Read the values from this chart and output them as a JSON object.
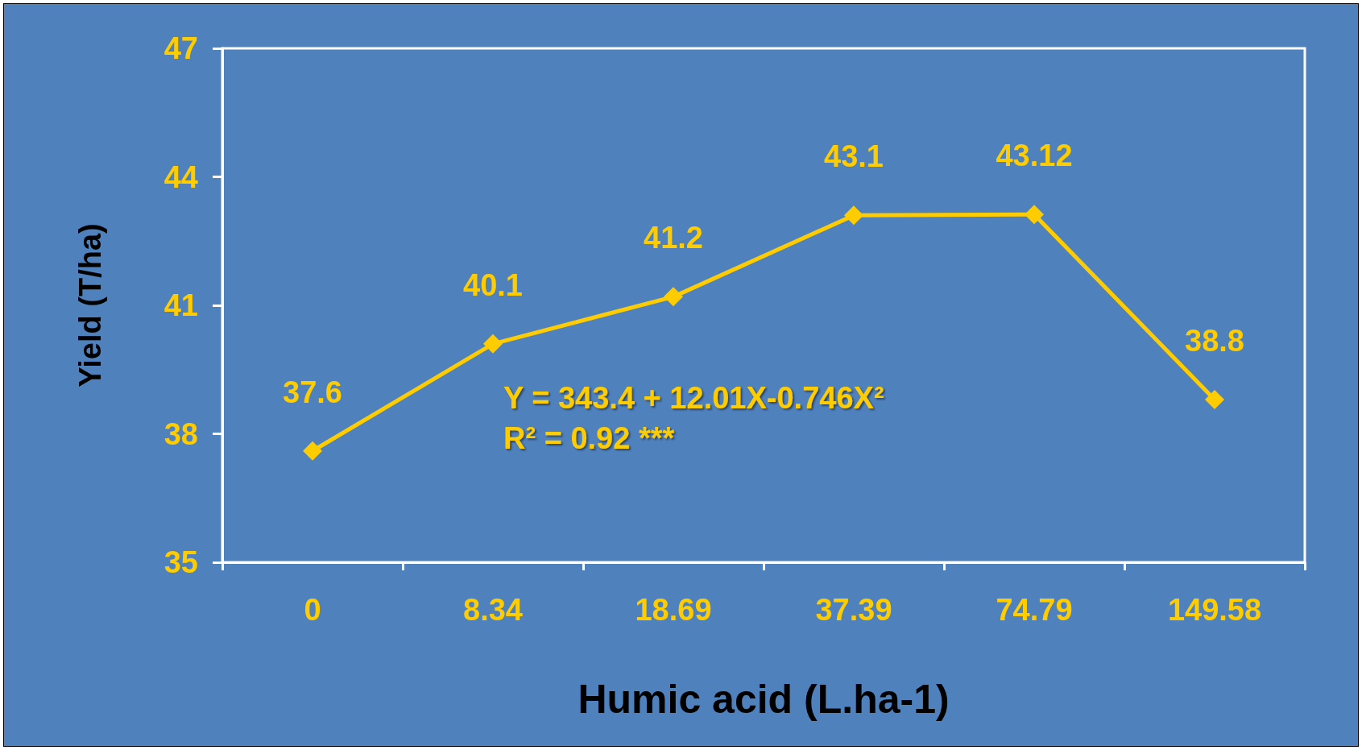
{
  "chart_data": {
    "type": "line",
    "xlabel": "Humic acid (L.ha-1)",
    "ylabel": "Yield (T/ha)",
    "categories": [
      "0",
      "8.34",
      "18.69",
      "37.39",
      "74.79",
      "149.58"
    ],
    "series": [
      {
        "color": "#ffcc00",
        "values": [
          37.6,
          40.1,
          41.2,
          43.1,
          43.12,
          38.8
        ]
      }
    ],
    "ylim": [
      35,
      47
    ],
    "yticks": [
      35,
      38,
      41,
      44,
      47
    ],
    "annotations": [
      "Y = 343.4 + 12.01X-0.746X²",
      "R² = 0.92 ***"
    ],
    "data_labels": true,
    "marker": "diamond",
    "line_style": "solid",
    "grid": false
  }
}
